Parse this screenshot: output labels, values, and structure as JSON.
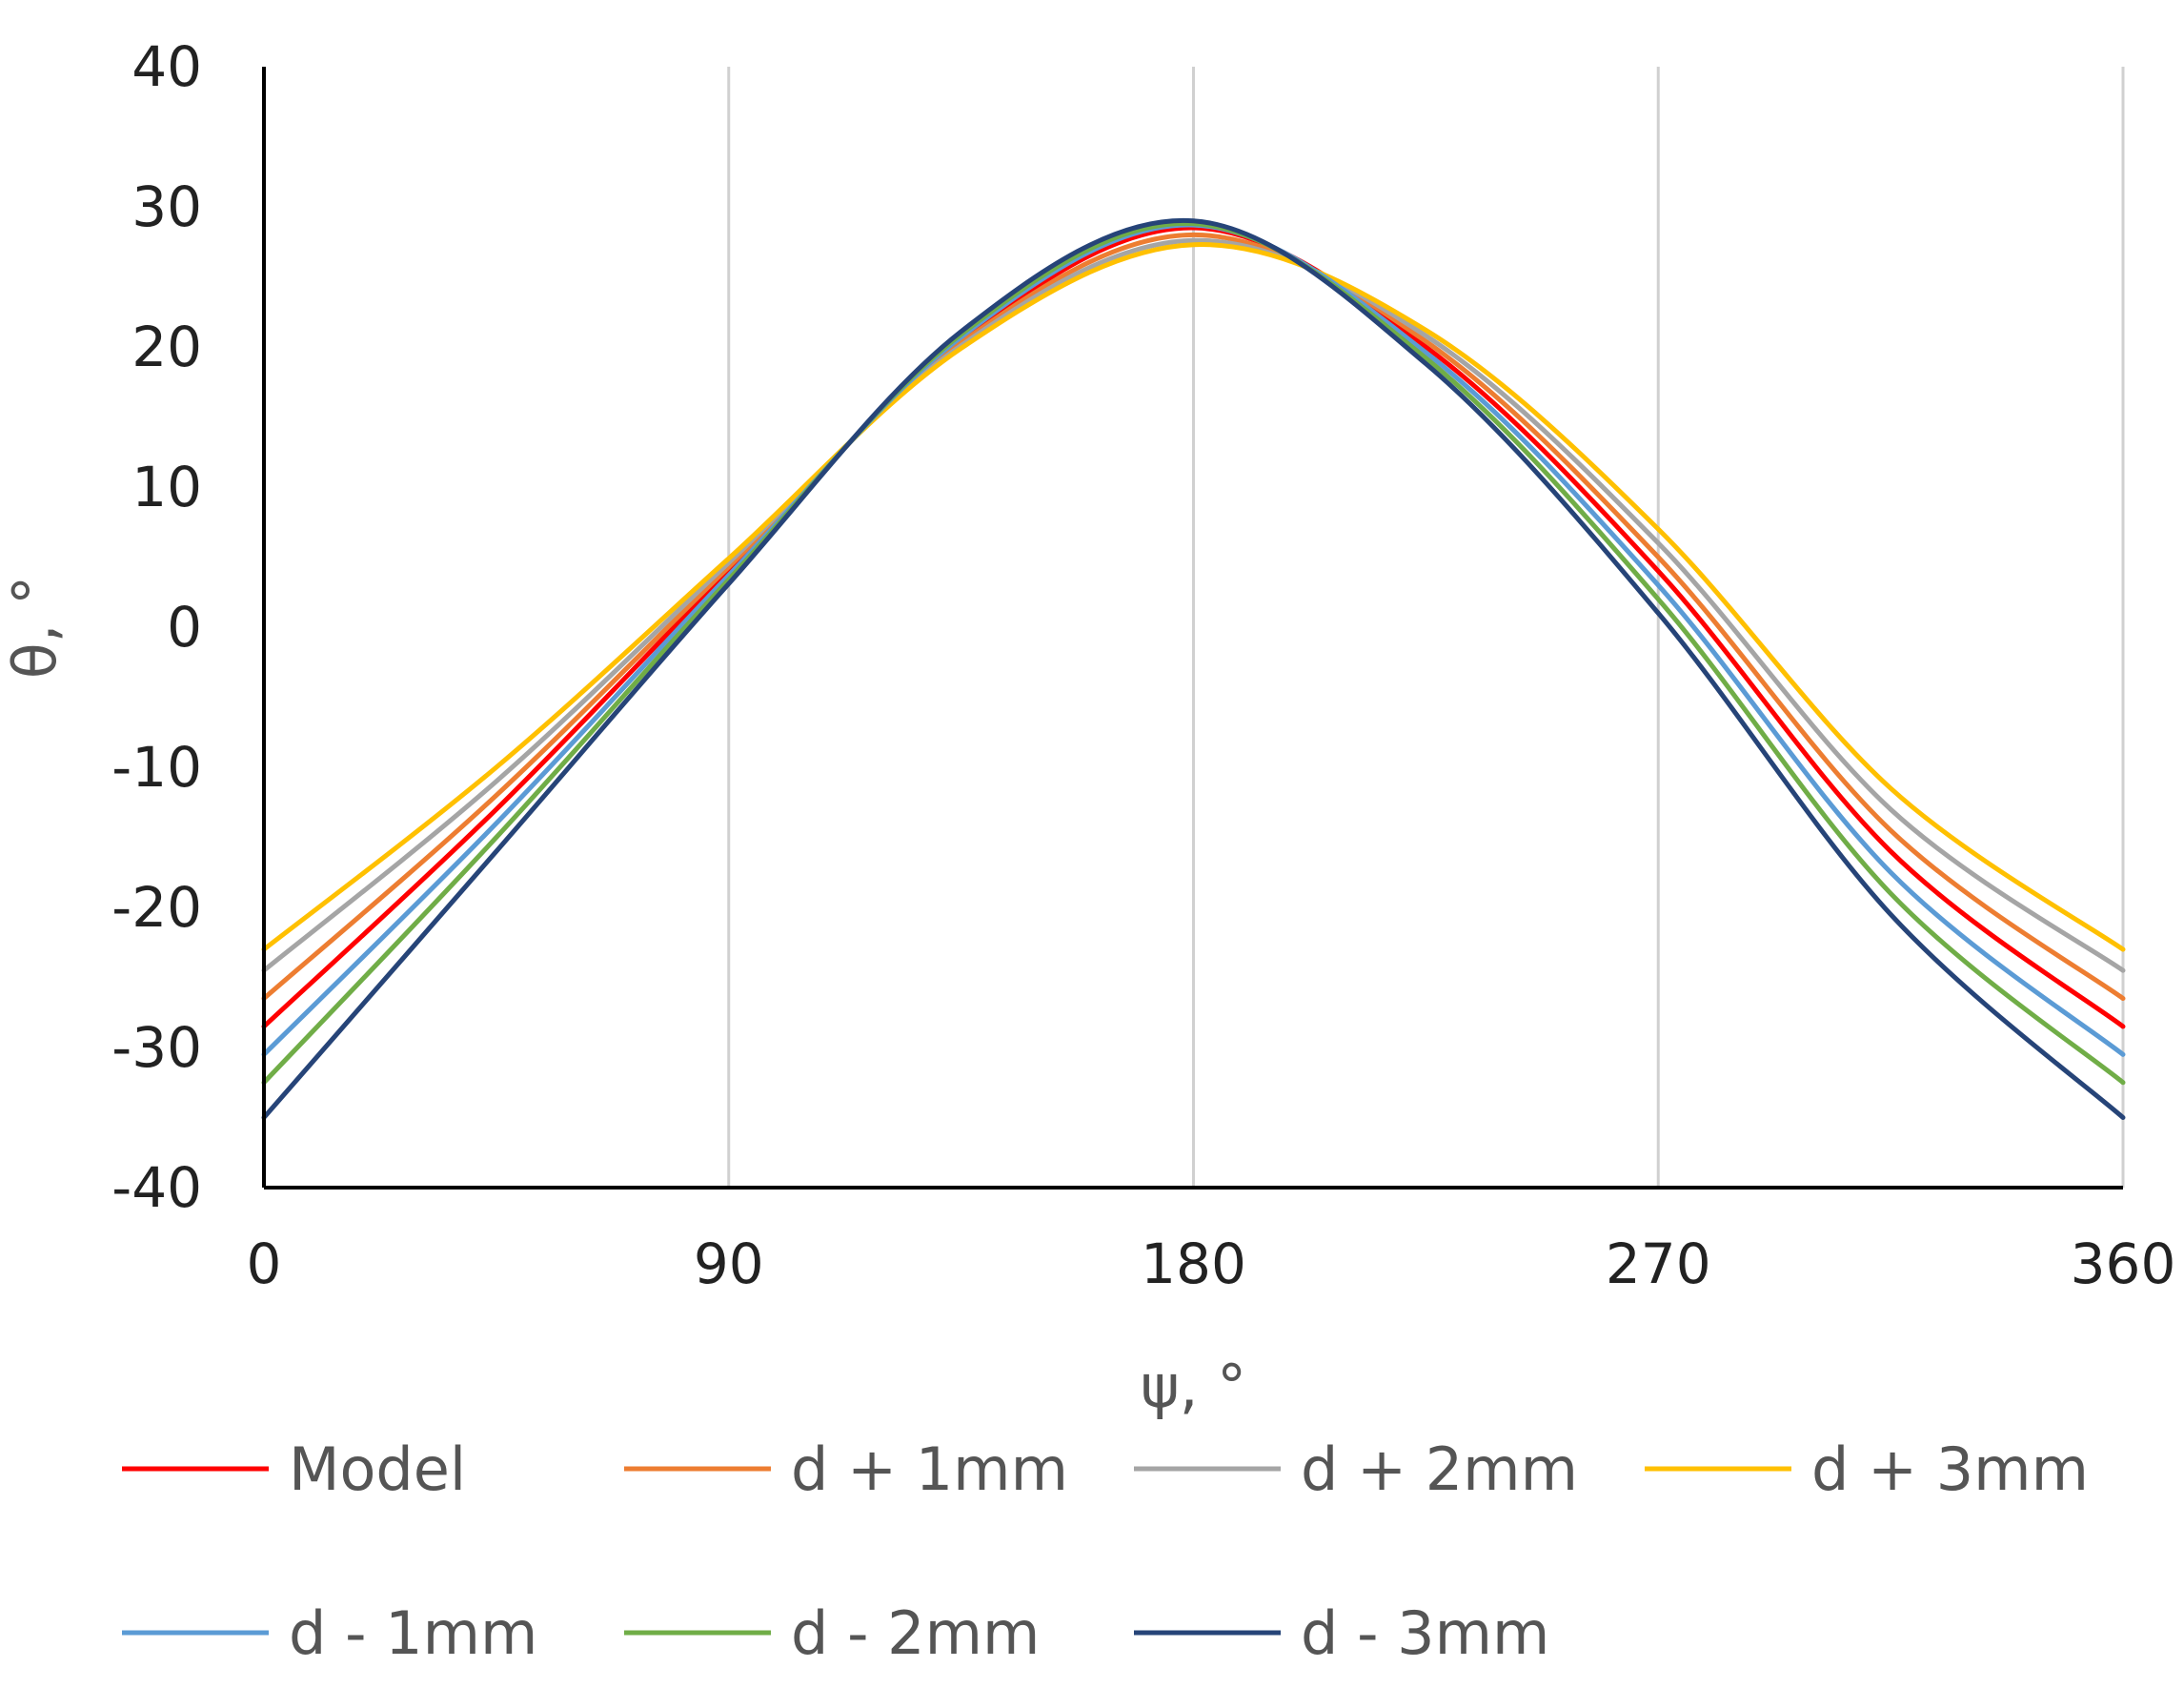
{
  "chart_data": {
    "type": "line",
    "title": "",
    "xlabel": "ψ, °",
    "ylabel": "θ, °",
    "xlim": [
      0,
      360
    ],
    "ylim": [
      -40,
      40
    ],
    "x_ticks": [
      0,
      90,
      180,
      270,
      360
    ],
    "x_tick_labels": [
      "0",
      "90",
      "180",
      "270",
      "360"
    ],
    "y_ticks": [
      -40,
      -30,
      -20,
      -10,
      0,
      10,
      20,
      30,
      40
    ],
    "y_tick_labels": [
      "-40",
      "-30",
      "-20",
      "-10",
      "0",
      "10",
      "20",
      "30",
      "40"
    ],
    "grid": "vertical",
    "legend_position": "bottom",
    "x": [
      0,
      45,
      90,
      135,
      180,
      225,
      270,
      315,
      360
    ],
    "series": [
      {
        "name": "Model",
        "color": "#FF0000",
        "values": [
          -28.5,
          -13.0,
          4.0,
          20.5,
          28.5,
          20.0,
          4.0,
          -16.0,
          -28.5
        ]
      },
      {
        "name": "d + 1mm",
        "color": "#ED7D31",
        "values": [
          -26.5,
          -12.0,
          4.3,
          20.3,
          28.0,
          20.4,
          5.0,
          -14.5,
          -26.5
        ]
      },
      {
        "name": "d + 2mm",
        "color": "#A5A5A5",
        "values": [
          -24.5,
          -11.0,
          4.6,
          20.1,
          27.6,
          20.8,
          6.0,
          -13.0,
          -24.5
        ]
      },
      {
        "name": "d + 3mm",
        "color": "#FFC000",
        "values": [
          -23.0,
          -10.0,
          4.9,
          19.9,
          27.3,
          21.2,
          7.0,
          -11.5,
          -23.0
        ]
      },
      {
        "name": "d - 1mm",
        "color": "#5B9BD5",
        "values": [
          -30.5,
          -14.0,
          3.7,
          20.7,
          28.7,
          19.6,
          3.0,
          -17.5,
          -30.5
        ]
      },
      {
        "name": "d - 2mm",
        "color": "#70AD47",
        "values": [
          -32.5,
          -15.0,
          3.4,
          20.9,
          28.8,
          19.2,
          2.0,
          -19.0,
          -32.5
        ]
      },
      {
        "name": "d - 3mm",
        "color": "#264478",
        "values": [
          -35.0,
          -16.0,
          3.1,
          21.1,
          29.0,
          18.8,
          1.0,
          -20.5,
          -35.0
        ]
      }
    ]
  }
}
